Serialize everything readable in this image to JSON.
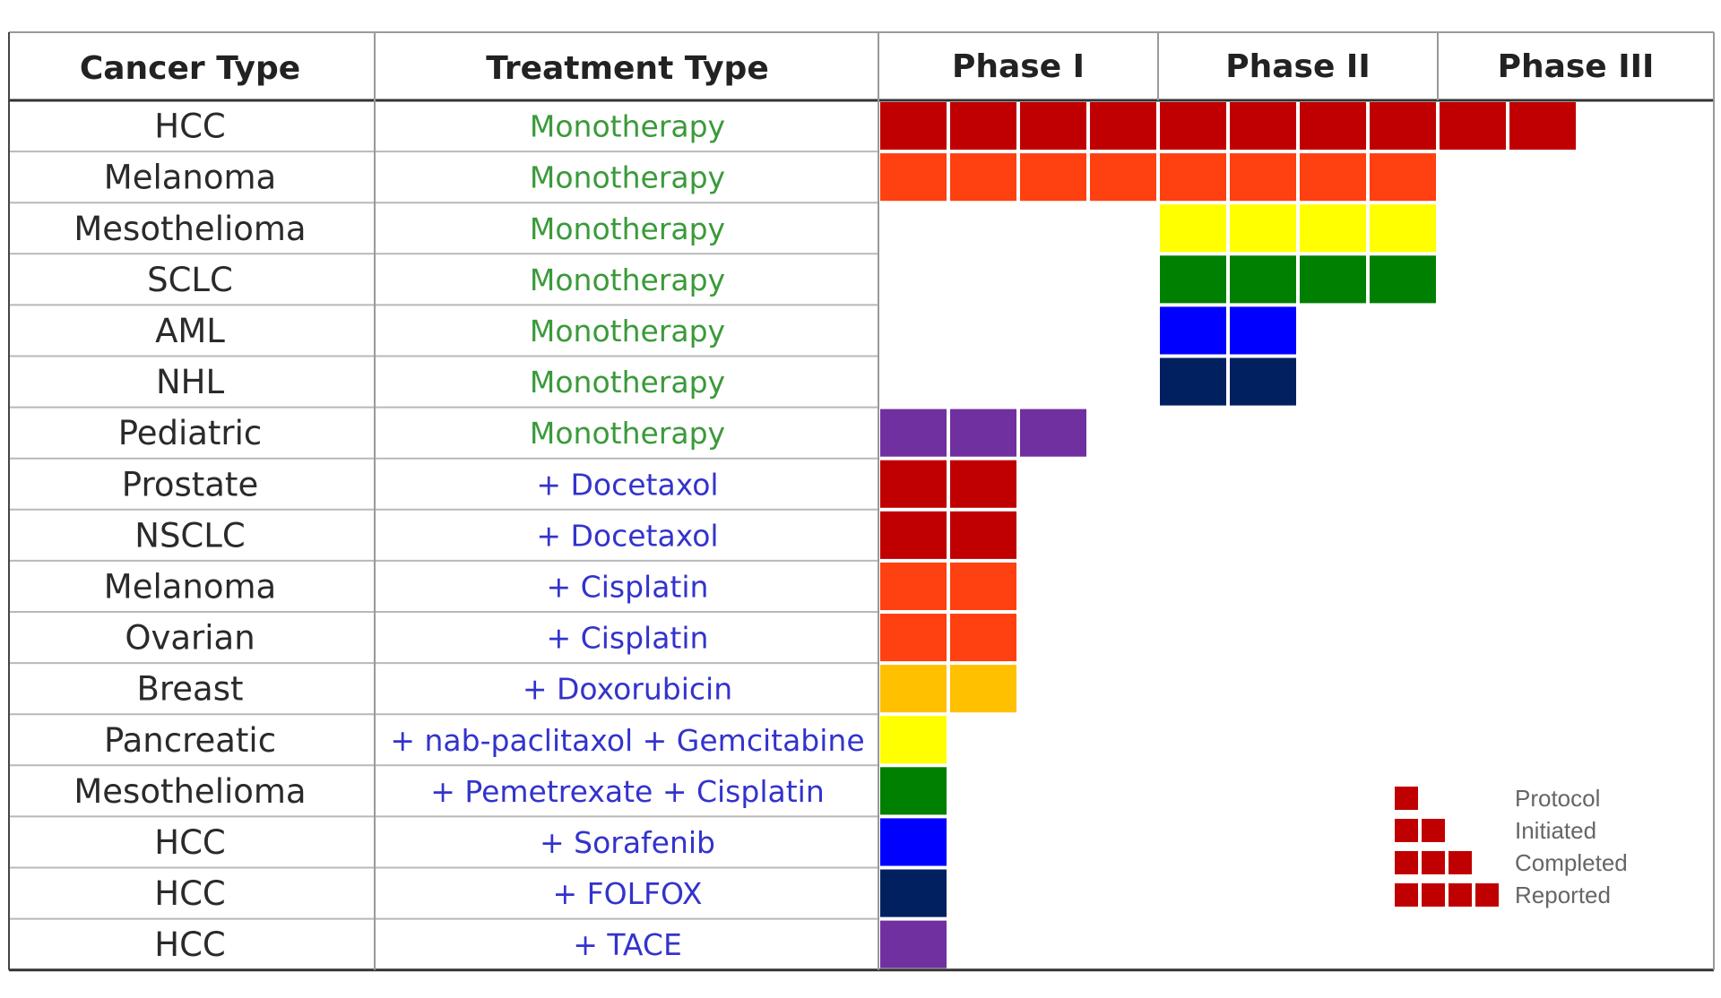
{
  "chart_data": {
    "type": "table",
    "columns": {
      "cancer_type": "Cancer Type",
      "treatment_type": "Treatment Type",
      "phases": [
        "Phase I",
        "Phase II",
        "Phase III"
      ]
    },
    "blocks_per_phase": 4,
    "rows": [
      {
        "cancer": "HCC",
        "treatment": "Monotherapy",
        "blocks": 10,
        "start": 0,
        "color": "#C00000",
        "treatment_color": "#3A9A3A"
      },
      {
        "cancer": "Melanoma",
        "treatment": "Monotherapy",
        "blocks": 8,
        "start": 0,
        "color": "#FF4010",
        "treatment_color": "#3A9A3A"
      },
      {
        "cancer": "Mesothelioma",
        "treatment": "Monotherapy",
        "blocks": 4,
        "start": 4,
        "color": "#FFFF00",
        "treatment_color": "#3A9A3A"
      },
      {
        "cancer": "SCLC",
        "treatment": "Monotherapy",
        "blocks": 4,
        "start": 4,
        "color": "#008000",
        "treatment_color": "#3A9A3A"
      },
      {
        "cancer": "AML",
        "treatment": "Monotherapy",
        "blocks": 2,
        "start": 4,
        "color": "#0000FF",
        "treatment_color": "#3A9A3A"
      },
      {
        "cancer": "NHL",
        "treatment": "Monotherapy",
        "blocks": 2,
        "start": 4,
        "color": "#002060",
        "treatment_color": "#3A9A3A"
      },
      {
        "cancer": "Pediatric",
        "treatment": "Monotherapy",
        "blocks": 3,
        "start": 0,
        "color": "#7030A0",
        "treatment_color": "#3A9A3A"
      },
      {
        "cancer": "Prostate",
        "treatment": "+ Docetaxol",
        "blocks": 2,
        "start": 0,
        "color": "#C00000",
        "treatment_color": "#3333CC"
      },
      {
        "cancer": "NSCLC",
        "treatment": "+ Docetaxol",
        "blocks": 2,
        "start": 0,
        "color": "#C00000",
        "treatment_color": "#3333CC"
      },
      {
        "cancer": "Melanoma",
        "treatment": "+ Cisplatin",
        "blocks": 2,
        "start": 0,
        "color": "#FF4010",
        "treatment_color": "#3333CC"
      },
      {
        "cancer": "Ovarian",
        "treatment": "+ Cisplatin",
        "blocks": 2,
        "start": 0,
        "color": "#FF4010",
        "treatment_color": "#3333CC"
      },
      {
        "cancer": "Breast",
        "treatment": "+ Doxorubicin",
        "blocks": 2,
        "start": 0,
        "color": "#FFC000",
        "treatment_color": "#3333CC"
      },
      {
        "cancer": "Pancreatic",
        "treatment": "+ nab-paclitaxol + Gemcitabine",
        "blocks": 1,
        "start": 0,
        "color": "#FFFF00",
        "treatment_color": "#3333CC"
      },
      {
        "cancer": "Mesothelioma",
        "treatment": "+ Pemetrexate + Cisplatin",
        "blocks": 1,
        "start": 0,
        "color": "#008000",
        "treatment_color": "#3333CC"
      },
      {
        "cancer": "HCC",
        "treatment": "+ Sorafenib",
        "blocks": 1,
        "start": 0,
        "color": "#0000FF",
        "treatment_color": "#3333CC"
      },
      {
        "cancer": "HCC",
        "treatment": "+ FOLFOX",
        "blocks": 1,
        "start": 0,
        "color": "#002060",
        "treatment_color": "#3333CC"
      },
      {
        "cancer": "HCC",
        "treatment": "+ TACE",
        "blocks": 1,
        "start": 0,
        "color": "#7030A0",
        "treatment_color": "#3333CC"
      }
    ],
    "legend": {
      "color": "#C00000",
      "items": [
        {
          "label": "Protocol",
          "blocks": 1
        },
        {
          "label": "Initiated",
          "blocks": 2
        },
        {
          "label": "Completed",
          "blocks": 3
        },
        {
          "label": "Reported",
          "blocks": 4
        }
      ]
    }
  }
}
